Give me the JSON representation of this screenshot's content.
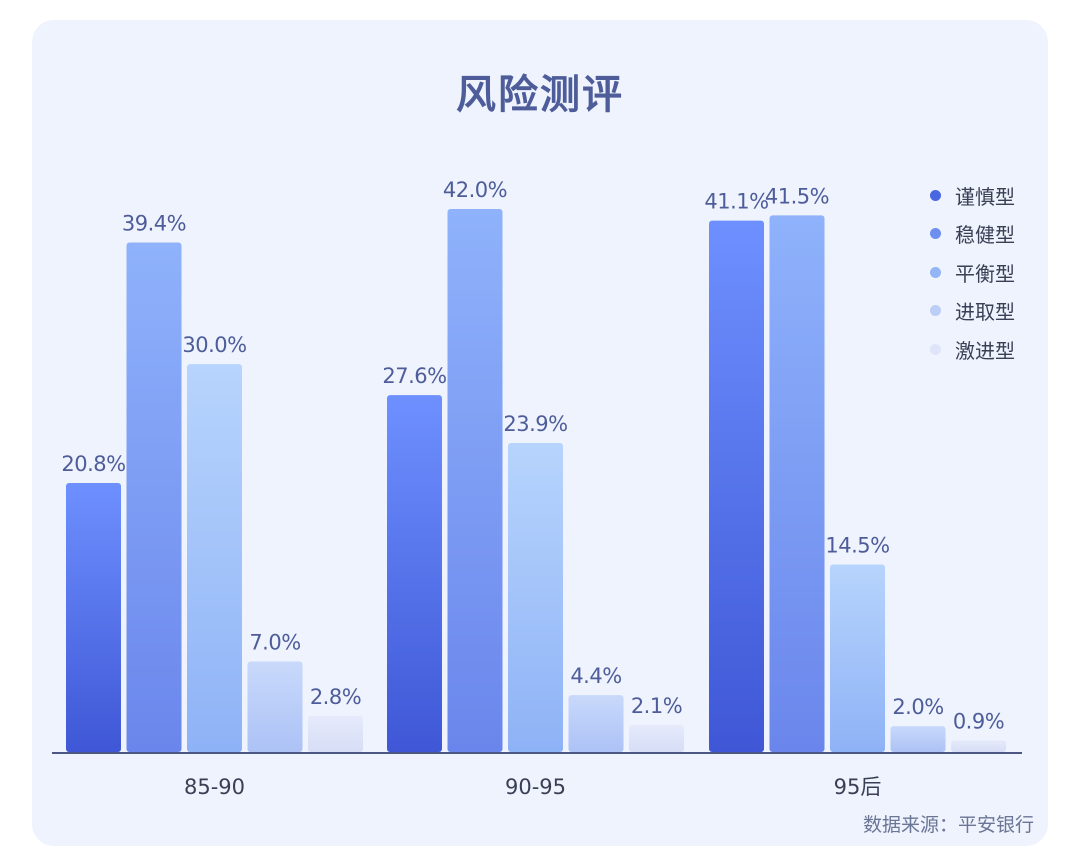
{
  "chart_data": {
    "type": "bar",
    "title": "风险测评",
    "categories": [
      "85-90",
      "90-95",
      "95后"
    ],
    "series": [
      {
        "name": "谨慎型",
        "values": [
          20.8,
          27.6,
          41.1
        ],
        "color": "#4a67e3"
      },
      {
        "name": "稳健型",
        "values": [
          39.4,
          42.0,
          41.5
        ],
        "color": "#6f8ff0"
      },
      {
        "name": "平衡型",
        "values": [
          30.0,
          23.9,
          14.5
        ],
        "color": "#93b5f6"
      },
      {
        "name": "进取型",
        "values": [
          7.0,
          4.4,
          2.0
        ],
        "color": "#bccdf8"
      },
      {
        "name": "激进型",
        "values": [
          2.8,
          2.1,
          0.9
        ],
        "color": "#dfe4f8"
      }
    ],
    "value_suffix": "%",
    "ylim": [
      0,
      45
    ],
    "legend_position": "top-right",
    "grid": false,
    "xlabel": "",
    "ylabel": ""
  },
  "source": "数据来源：平安银行"
}
